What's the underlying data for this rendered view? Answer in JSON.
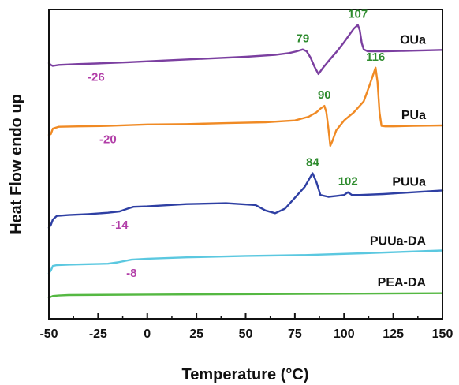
{
  "chart_data": {
    "type": "line",
    "xlabel": "Temperature (°C)",
    "ylabel": "Heat Flow endo up",
    "xlim": [
      -50,
      150
    ],
    "x_ticks": [
      "-50",
      "-25",
      "0",
      "25",
      "50",
      "75",
      "100",
      "125",
      "150"
    ],
    "y_ticks": [],
    "grid": false,
    "legend": "none",
    "y_units": "arbitrary (vertically offset traces)",
    "colors": {
      "OUa": "#7b3fa0",
      "PUa": "#f08a24",
      "PUUa": "#2e3fa3",
      "PUUa-DA": "#5bc8e0",
      "PEA-DA": "#55b842",
      "tg_annotation": "#b23fa8",
      "tm_annotation": "#2e8b2e"
    },
    "series": [
      {
        "name": "OUa",
        "x": [
          -50,
          -49,
          -48,
          -45,
          -35,
          -26,
          -10,
          10,
          30,
          50,
          65,
          72,
          76,
          79,
          81,
          83,
          85,
          87,
          89,
          92,
          96,
          100,
          103,
          105,
          107,
          108,
          109,
          110,
          112,
          115,
          120,
          130,
          140,
          150
        ],
        "y": [
          0.76,
          0.74,
          0.73,
          0.74,
          0.75,
          0.756,
          0.77,
          0.79,
          0.81,
          0.83,
          0.85,
          0.87,
          0.89,
          0.91,
          0.89,
          0.82,
          0.72,
          0.64,
          0.7,
          0.78,
          0.88,
          0.99,
          1.08,
          1.14,
          1.18,
          1.12,
          0.98,
          0.91,
          0.89,
          0.89,
          0.89,
          0.895,
          0.9,
          0.905
        ],
        "annotations": [
          {
            "x": -26,
            "text": "-26",
            "kind": "tg"
          },
          {
            "x": 79,
            "text": "79",
            "kind": "tm"
          },
          {
            "x": 107,
            "text": "107",
            "kind": "tm"
          }
        ]
      },
      {
        "name": "PUa",
        "x": [
          -50,
          -49,
          -48,
          -45,
          -35,
          -20,
          0,
          20,
          40,
          60,
          75,
          82,
          86,
          88,
          90,
          91,
          92,
          93,
          94,
          96,
          100,
          105,
          110,
          113,
          116,
          117,
          118,
          119,
          121,
          125,
          135,
          150
        ],
        "y": [
          -0.03,
          -0.02,
          0.04,
          0.06,
          0.065,
          0.07,
          0.085,
          0.09,
          0.1,
          0.11,
          0.13,
          0.17,
          0.22,
          0.26,
          0.29,
          0.22,
          0.05,
          -0.15,
          -0.1,
          0.02,
          0.13,
          0.22,
          0.34,
          0.52,
          0.71,
          0.55,
          0.22,
          0.07,
          0.065,
          0.065,
          0.07,
          0.075
        ],
        "annotations": [
          {
            "x": -20,
            "text": "-20",
            "kind": "tg"
          },
          {
            "x": 90,
            "text": "90",
            "kind": "tm"
          },
          {
            "x": 116,
            "text": "116",
            "kind": "tm"
          }
        ]
      },
      {
        "name": "PUUa",
        "x": [
          -50,
          -49,
          -48,
          -46,
          -40,
          -30,
          -20,
          -14,
          -10,
          -7,
          0,
          20,
          40,
          55,
          60,
          65,
          70,
          75,
          80,
          84,
          86,
          88,
          92,
          96,
          100,
          102,
          104,
          108,
          120,
          150
        ],
        "y": [
          -1.05,
          -1.02,
          -0.96,
          -0.92,
          -0.91,
          -0.9,
          -0.885,
          -0.87,
          -0.84,
          -0.82,
          -0.815,
          -0.79,
          -0.78,
          -0.8,
          -0.86,
          -0.89,
          -0.84,
          -0.72,
          -0.6,
          -0.45,
          -0.55,
          -0.69,
          -0.71,
          -0.7,
          -0.69,
          -0.66,
          -0.69,
          -0.69,
          -0.68,
          -0.64
        ],
        "annotations": [
          {
            "x": -14,
            "text": "-14",
            "kind": "tg"
          },
          {
            "x": 84,
            "text": "84",
            "kind": "tm"
          },
          {
            "x": 102,
            "text": "102",
            "kind": "tm"
          }
        ]
      },
      {
        "name": "PUUa-DA",
        "x": [
          -50,
          -49,
          -48,
          -46,
          -40,
          -30,
          -20,
          -15,
          -8,
          0,
          20,
          50,
          80,
          110,
          150
        ],
        "y": [
          -1.55,
          -1.52,
          -1.47,
          -1.46,
          -1.455,
          -1.45,
          -1.445,
          -1.43,
          -1.4,
          -1.39,
          -1.375,
          -1.36,
          -1.35,
          -1.33,
          -1.3
        ],
        "annotations": [
          {
            "x": -8,
            "text": "-8",
            "kind": "tg"
          }
        ]
      },
      {
        "name": "PEA-DA",
        "x": [
          -50,
          -49,
          -48,
          -45,
          -40,
          0,
          50,
          100,
          150
        ],
        "y": [
          -1.82,
          -1.81,
          -1.8,
          -1.795,
          -1.79,
          -1.785,
          -1.78,
          -1.775,
          -1.77
        ],
        "annotations": []
      }
    ]
  }
}
